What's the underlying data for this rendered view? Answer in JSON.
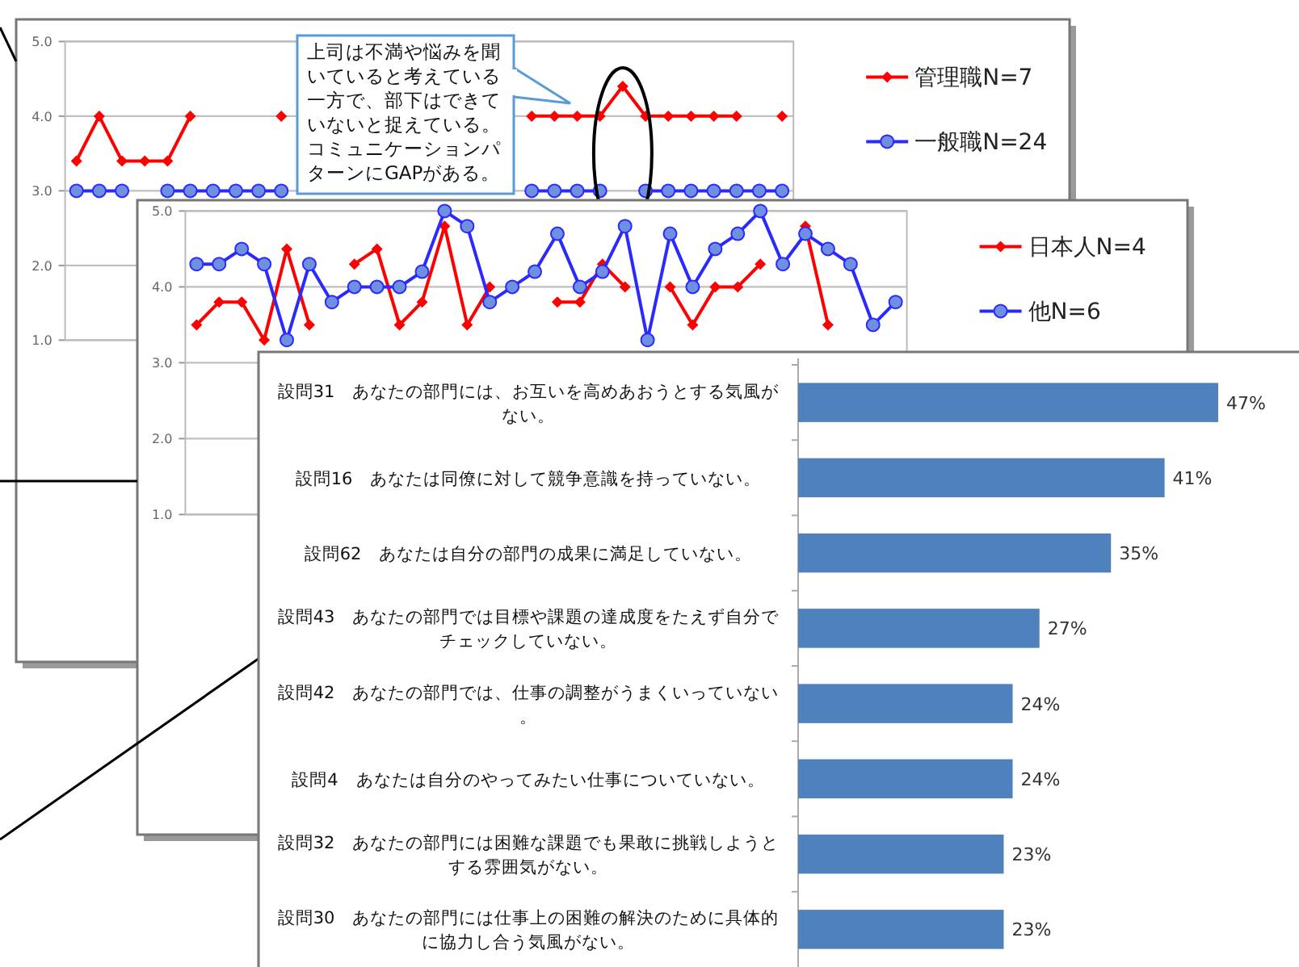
{
  "chart_data": [
    {
      "type": "line",
      "categories": [
        null,
        null,
        null,
        null,
        null,
        null,
        null,
        null,
        null,
        null,
        null,
        null,
        null,
        null,
        null,
        null,
        null,
        null,
        null,
        null,
        null,
        null,
        null,
        null,
        null,
        null,
        null,
        null,
        null,
        null,
        null,
        null
      ],
      "ylim": [
        1,
        5
      ],
      "yticks": [
        {
          "value": 1,
          "label": "1.0"
        },
        {
          "value": 2,
          "label": "2.0"
        },
        {
          "value": 3,
          "label": "3.0"
        },
        {
          "value": 4,
          "label": "4.0"
        },
        {
          "value": 5,
          "label": "5.0"
        }
      ],
      "grid": "y",
      "tick_labels": "y",
      "legend": "right",
      "marker": "circle",
      "series": [
        {
          "name": "管理職N=7",
          "color": "#ff0000",
          "marker": "diamond",
          "values": [
            3.4,
            4.0,
            3.4,
            3.4,
            3.4,
            4.0,
            null,
            null,
            null,
            4.0,
            null,
            null,
            null,
            null,
            null,
            null,
            null,
            null,
            null,
            null,
            4.0,
            4.0,
            4.0,
            4.0,
            4.4,
            4.0,
            4.0,
            4.0,
            4.0,
            4.0,
            null,
            4.0
          ]
        },
        {
          "name": "一般職N=24",
          "color": "#2a2aff",
          "values": [
            3.0,
            3.0,
            3.0,
            null,
            3.0,
            3.0,
            3.0,
            3.0,
            3.0,
            3.0,
            null,
            null,
            null,
            null,
            null,
            null,
            null,
            null,
            null,
            null,
            3.0,
            3.0,
            3.0,
            3.0,
            null,
            3.0,
            3.0,
            3.0,
            3.0,
            3.0,
            3.0,
            3.0
          ]
        }
      ],
      "annotations": [
        "上司は不満や悩みを聞いていると考えている一方で、部下はできていないと捉えている。コミュニケーションパターンにGAPがある。"
      ]
    },
    {
      "type": "line",
      "categories": [
        null,
        null,
        null,
        null,
        null,
        null,
        null,
        null,
        null,
        null,
        null,
        null,
        null,
        null,
        null,
        null,
        null,
        null,
        null,
        null,
        null,
        null,
        null,
        null,
        null,
        null,
        null,
        null,
        null,
        null,
        null,
        null
      ],
      "ylim": [
        1,
        5
      ],
      "yticks": [
        {
          "value": 1,
          "label": "1.0"
        },
        {
          "value": 2,
          "label": "2.0"
        },
        {
          "value": 3,
          "label": "3.0"
        },
        {
          "value": 4,
          "label": "4.0"
        },
        {
          "value": 5,
          "label": "5.0"
        }
      ],
      "grid": "y",
      "tick_labels": "y",
      "legend": "right",
      "marker": "circle",
      "series": [
        {
          "name": "日本人N=4",
          "color": "#ff0000",
          "marker": "diamond",
          "values": [
            3.5,
            3.8,
            3.8,
            3.3,
            4.5,
            3.5,
            null,
            4.3,
            4.5,
            3.5,
            3.8,
            4.8,
            3.5,
            4.0,
            null,
            null,
            3.8,
            3.8,
            4.3,
            4.0,
            null,
            4.0,
            3.5,
            4.0,
            4.0,
            4.3,
            null,
            4.8,
            3.5,
            null,
            null,
            null
          ]
        },
        {
          "name": "他N=6",
          "color": "#2a2aff",
          "values": [
            4.3,
            4.3,
            4.5,
            4.3,
            3.3,
            4.3,
            3.8,
            4.0,
            4.0,
            4.0,
            4.2,
            5.0,
            4.8,
            3.8,
            4.0,
            4.2,
            4.7,
            4.0,
            4.2,
            4.8,
            3.3,
            4.7,
            4.0,
            4.5,
            4.7,
            5.0,
            4.3,
            4.7,
            4.5,
            4.3,
            3.5,
            3.8
          ]
        }
      ]
    },
    {
      "type": "bar",
      "orientation": "horizontal",
      "color": "#4f81bd",
      "categories": [
        "設問31　あなたの部門には、お互いを高めあおうとする気風がない。",
        "設問16　あなたは同僚に対して競争意識を持っていない。",
        "設問62　あなたは自分の部門の成果に満足していない。",
        "設問43　あなたの部門では目標や課題の達成度をたえず自分でチェックしていない。",
        "設問42　あなたの部門では、仕事の調整がうまくいっていない。",
        "設問4　あなたは自分のやってみたい仕事についていない。",
        "設問32　あなたの部門には困難な課題でも果敢に挑戦しようとする雰囲気がない。",
        "設問30　あなたの部門には仕事上の困難の解決のために具体的に協力し合う気風がない。"
      ],
      "values": [
        47,
        41,
        35,
        27,
        24,
        24,
        23,
        23
      ],
      "value_labels": [
        "47%",
        "41%",
        "35%",
        "27%",
        "24%",
        "24%",
        "23%",
        "23%"
      ]
    }
  ]
}
